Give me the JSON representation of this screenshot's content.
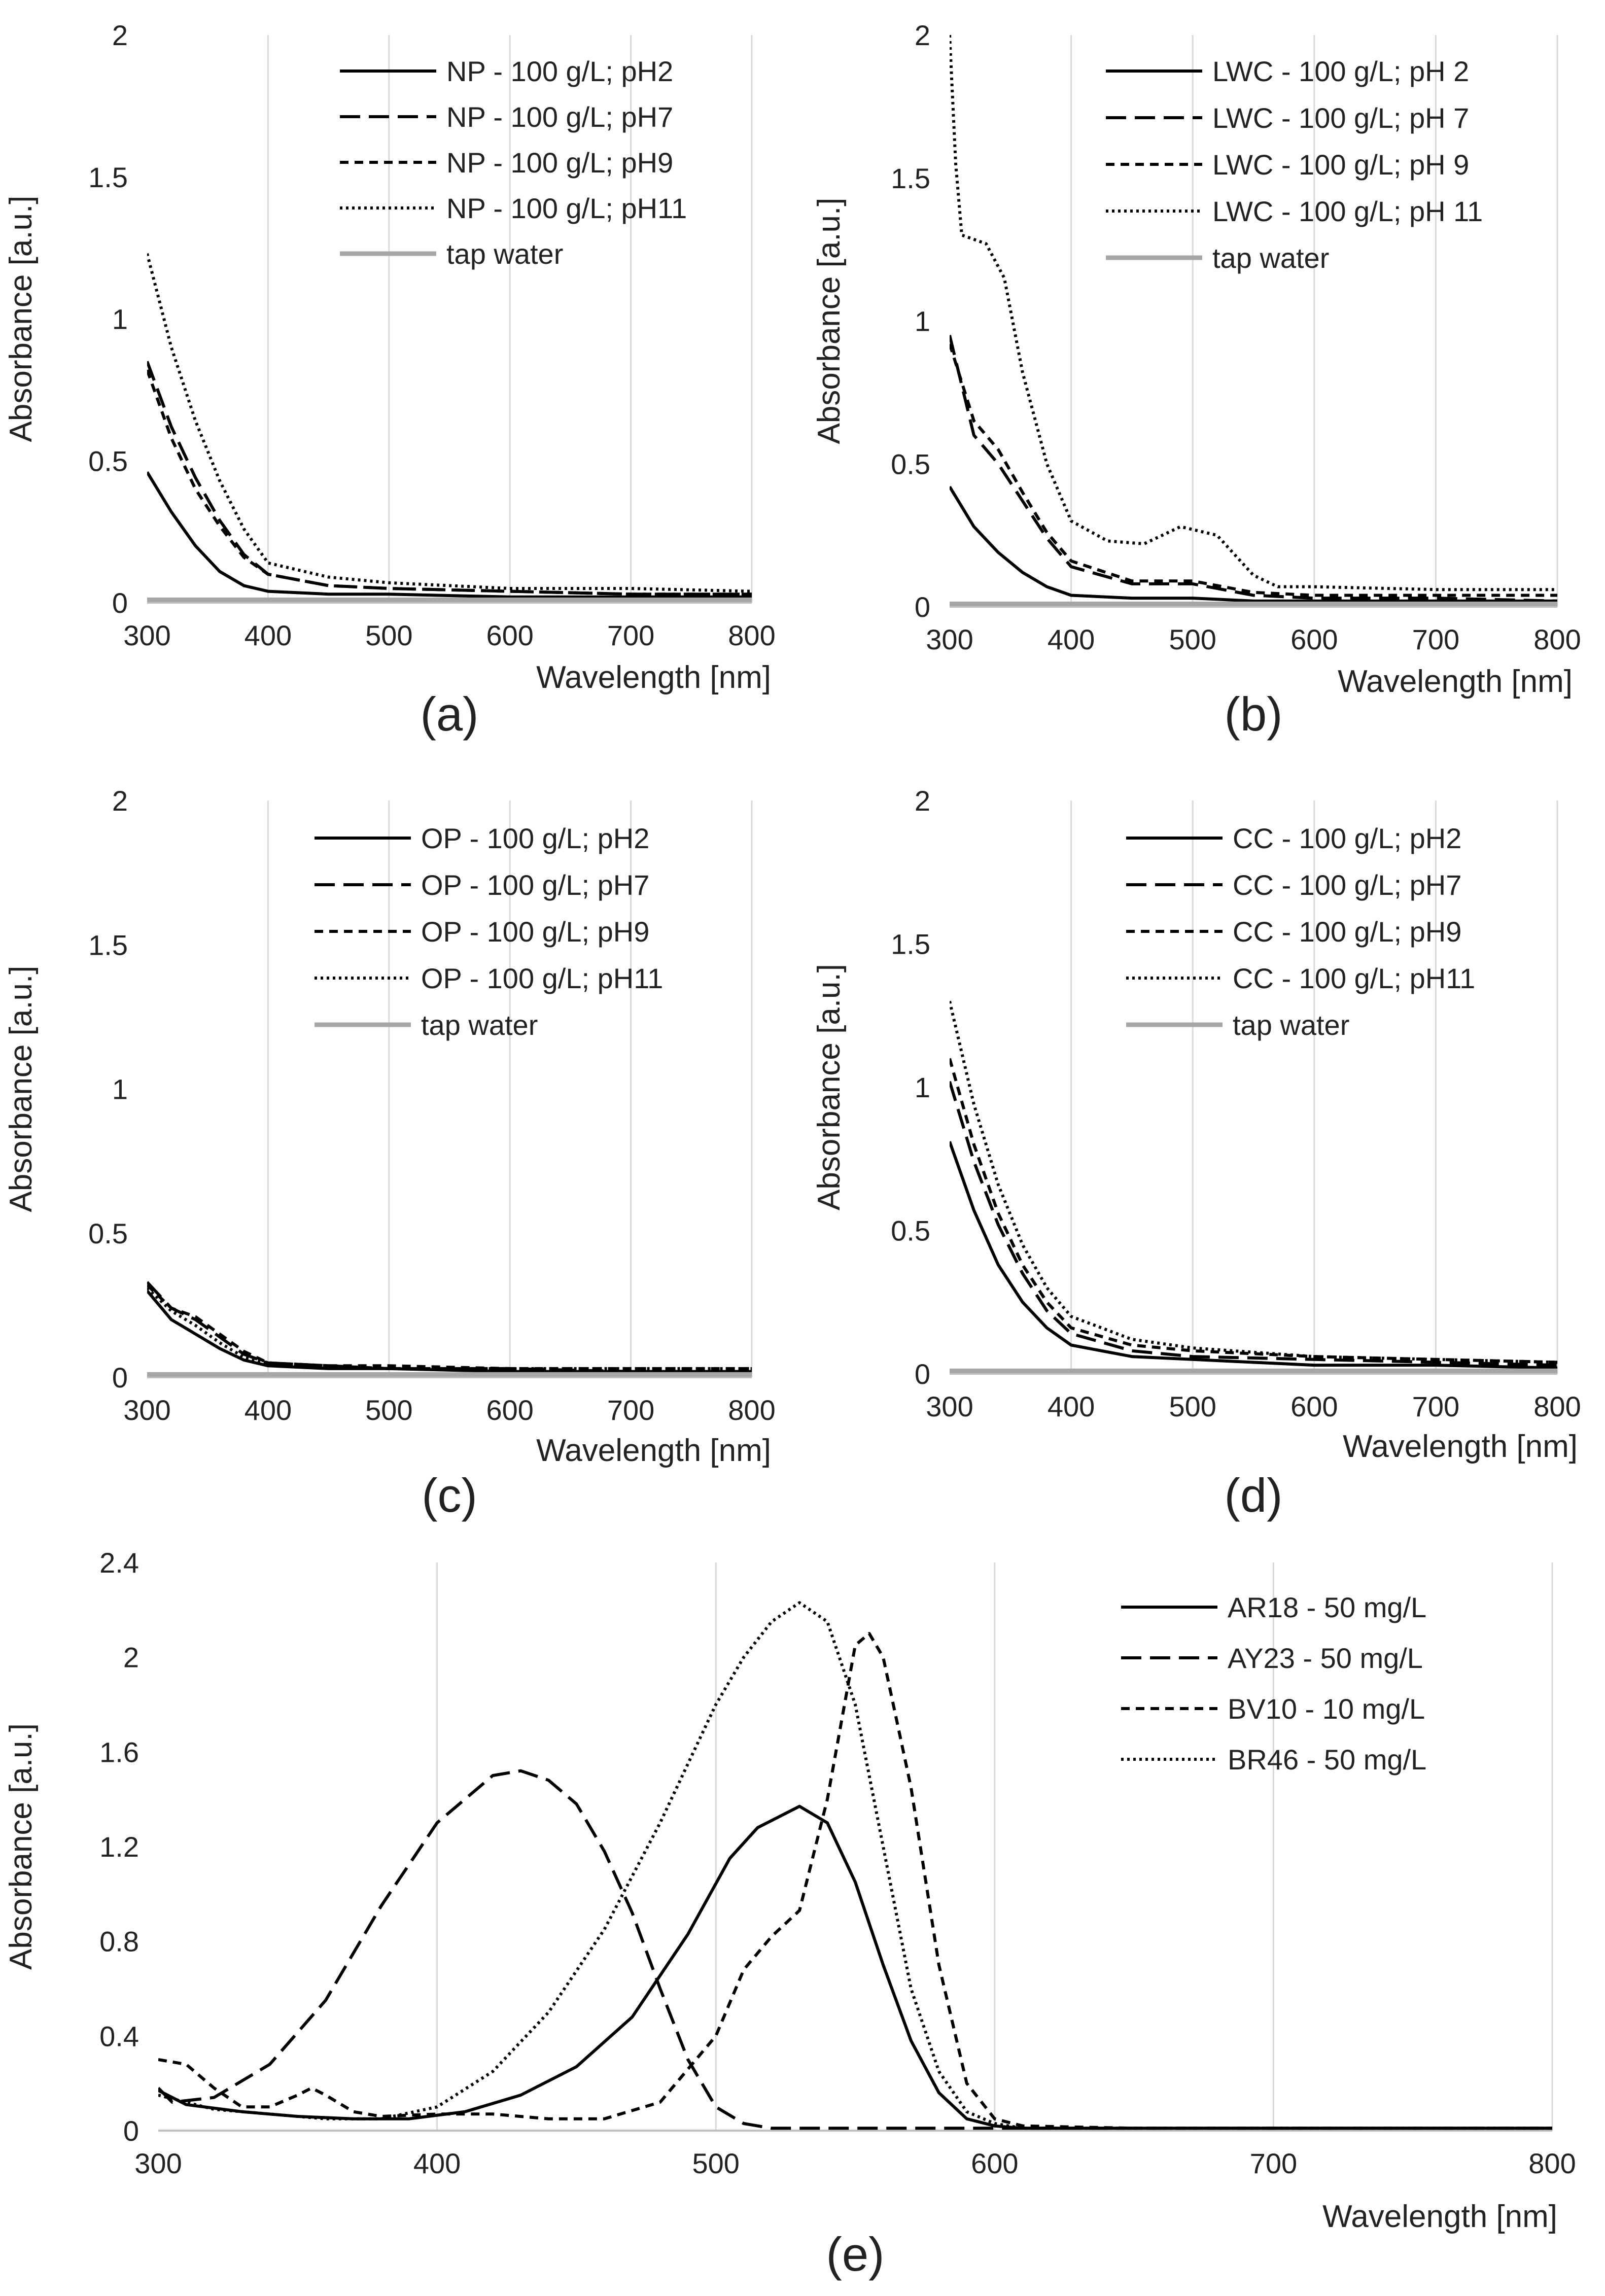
{
  "colors": {
    "line": "#000000",
    "tap_water": "#a6a6a6",
    "grid": "#d9d9d9",
    "axis": "#bfbfbf",
    "text": "#222222"
  },
  "chart_data": [
    {
      "id": "a",
      "type": "line",
      "panel_label": "(a)",
      "xlabel": "Wavelength [nm]",
      "ylabel": "Absorbance [a.u.]",
      "xlim": [
        300,
        800
      ],
      "ylim": [
        0,
        2
      ],
      "xticks": [
        300,
        400,
        500,
        600,
        700,
        800
      ],
      "yticks": [
        0,
        0.5,
        1,
        1.5,
        2
      ],
      "ytick_labels": [
        "0",
        "0.5",
        "1",
        "1.5",
        "2"
      ],
      "legend_position": "top-right",
      "grid": true,
      "series": [
        {
          "name": "NP - 100 g/L; pH2",
          "style": "solid",
          "x": [
            300,
            320,
            340,
            360,
            380,
            400,
            450,
            500,
            600,
            700,
            800
          ],
          "y": [
            0.46,
            0.32,
            0.2,
            0.11,
            0.06,
            0.04,
            0.03,
            0.03,
            0.02,
            0.02,
            0.02
          ]
        },
        {
          "name": "NP - 100 g/L; pH7",
          "style": "dash",
          "x": [
            300,
            320,
            340,
            360,
            380,
            400,
            450,
            500,
            600,
            700,
            800
          ],
          "y": [
            0.85,
            0.62,
            0.44,
            0.29,
            0.17,
            0.1,
            0.06,
            0.05,
            0.04,
            0.03,
            0.03
          ]
        },
        {
          "name": "NP - 100 g/L; pH9",
          "style": "shortdash",
          "x": [
            300,
            320,
            340,
            360,
            380,
            400,
            450,
            500,
            600,
            700,
            800
          ],
          "y": [
            0.82,
            0.58,
            0.4,
            0.27,
            0.16,
            0.1,
            0.06,
            0.05,
            0.04,
            0.03,
            0.03
          ]
        },
        {
          "name": "NP - 100 g/L; pH11",
          "style": "dot",
          "x": [
            300,
            320,
            340,
            360,
            380,
            400,
            450,
            500,
            600,
            700,
            800
          ],
          "y": [
            1.23,
            0.9,
            0.64,
            0.43,
            0.26,
            0.14,
            0.09,
            0.07,
            0.05,
            0.05,
            0.04
          ]
        },
        {
          "name": "tap water",
          "style": "gray",
          "x": [
            300,
            800
          ],
          "y": [
            0.01,
            0.01
          ]
        }
      ]
    },
    {
      "id": "b",
      "type": "line",
      "panel_label": "(b)",
      "xlabel": "Wavelength [nm]",
      "ylabel": "Absorbance [a.u.]",
      "xlim": [
        300,
        800
      ],
      "ylim": [
        0,
        2
      ],
      "xticks": [
        300,
        400,
        500,
        600,
        700,
        800
      ],
      "yticks": [
        0,
        0.5,
        1,
        1.5,
        2
      ],
      "ytick_labels": [
        "0",
        "0.5",
        "1",
        "1.5",
        "2"
      ],
      "legend_position": "top-right",
      "grid": true,
      "series": [
        {
          "name": "LWC - 100 g/L; pH 2",
          "style": "solid",
          "x": [
            300,
            320,
            340,
            360,
            380,
            400,
            450,
            500,
            550,
            600,
            700,
            800
          ],
          "y": [
            0.42,
            0.28,
            0.19,
            0.12,
            0.07,
            0.04,
            0.03,
            0.03,
            0.02,
            0.02,
            0.02,
            0.02
          ]
        },
        {
          "name": "LWC - 100 g/L; pH 7",
          "style": "dash",
          "x": [
            300,
            320,
            340,
            360,
            380,
            400,
            450,
            500,
            550,
            600,
            700,
            800
          ],
          "y": [
            0.95,
            0.6,
            0.5,
            0.37,
            0.24,
            0.14,
            0.08,
            0.08,
            0.04,
            0.03,
            0.03,
            0.02
          ]
        },
        {
          "name": "LWC - 100 g/L; pH 9",
          "style": "shortdash",
          "x": [
            300,
            320,
            340,
            360,
            380,
            400,
            450,
            500,
            550,
            600,
            700,
            800
          ],
          "y": [
            0.92,
            0.65,
            0.55,
            0.4,
            0.26,
            0.16,
            0.09,
            0.09,
            0.05,
            0.04,
            0.04,
            0.04
          ]
        },
        {
          "name": "LWC - 100 g/L; pH 11",
          "style": "dot",
          "x": [
            300,
            305,
            310,
            330,
            345,
            360,
            380,
            400,
            430,
            460,
            490,
            520,
            550,
            570,
            600,
            700,
            800
          ],
          "y": [
            2.0,
            1.55,
            1.3,
            1.27,
            1.15,
            0.82,
            0.5,
            0.3,
            0.23,
            0.22,
            0.28,
            0.25,
            0.11,
            0.07,
            0.07,
            0.06,
            0.06
          ]
        },
        {
          "name": "tap water",
          "style": "gray",
          "x": [
            300,
            800
          ],
          "y": [
            0.01,
            0.01
          ]
        }
      ]
    },
    {
      "id": "c",
      "type": "line",
      "panel_label": "(c)",
      "xlabel": "Wavelength [nm]",
      "ylabel": "Absorbance [a.u.]",
      "xlim": [
        300,
        800
      ],
      "ylim": [
        0,
        2
      ],
      "xticks": [
        300,
        400,
        500,
        600,
        700,
        800
      ],
      "yticks": [
        0,
        0.5,
        1,
        1.5,
        2
      ],
      "ytick_labels": [
        "0",
        "0.5",
        "1",
        "1.5",
        "2"
      ],
      "legend_position": "top-right",
      "grid": true,
      "series": [
        {
          "name": "OP - 100 g/L; pH2",
          "style": "solid",
          "x": [
            300,
            320,
            340,
            360,
            380,
            400,
            450,
            500,
            600,
            700,
            800
          ],
          "y": [
            0.3,
            0.2,
            0.15,
            0.1,
            0.06,
            0.04,
            0.03,
            0.03,
            0.02,
            0.02,
            0.02
          ]
        },
        {
          "name": "OP - 100 g/L; pH7",
          "style": "dash",
          "x": [
            300,
            320,
            340,
            360,
            380,
            400,
            450,
            500,
            600,
            700,
            800
          ],
          "y": [
            0.33,
            0.24,
            0.2,
            0.14,
            0.08,
            0.05,
            0.04,
            0.03,
            0.03,
            0.02,
            0.02
          ]
        },
        {
          "name": "OP - 100 g/L; pH9",
          "style": "shortdash",
          "x": [
            300,
            320,
            340,
            360,
            380,
            400,
            450,
            500,
            600,
            700,
            800
          ],
          "y": [
            0.32,
            0.24,
            0.21,
            0.15,
            0.09,
            0.05,
            0.04,
            0.04,
            0.03,
            0.03,
            0.03
          ]
        },
        {
          "name": "OP - 100 g/L; pH11",
          "style": "dot",
          "x": [
            300,
            320,
            340,
            360,
            380,
            400,
            450,
            500,
            600,
            700,
            800
          ],
          "y": [
            0.31,
            0.23,
            0.18,
            0.12,
            0.07,
            0.05,
            0.04,
            0.03,
            0.03,
            0.03,
            0.03
          ]
        },
        {
          "name": "tap water",
          "style": "gray",
          "x": [
            300,
            800
          ],
          "y": [
            0.01,
            0.01
          ]
        }
      ]
    },
    {
      "id": "d",
      "type": "line",
      "panel_label": "(d)",
      "xlabel": "Wavelength [nm]",
      "ylabel": "Absorbance [a.u.]",
      "xlim": [
        300,
        800
      ],
      "ylim": [
        0,
        2
      ],
      "xticks": [
        300,
        400,
        500,
        600,
        700,
        800
      ],
      "yticks": [
        0,
        0.5,
        1,
        1.5,
        2
      ],
      "ytick_labels": [
        "0",
        "0.5",
        "1",
        "1.5",
        "2"
      ],
      "legend_position": "top-right",
      "grid": true,
      "series": [
        {
          "name": "CC - 100 g/L; pH2",
          "style": "solid",
          "x": [
            300,
            320,
            340,
            360,
            380,
            400,
            450,
            500,
            600,
            700,
            800
          ],
          "y": [
            0.81,
            0.57,
            0.38,
            0.25,
            0.16,
            0.1,
            0.06,
            0.05,
            0.03,
            0.03,
            0.02
          ]
        },
        {
          "name": "CC - 100 g/L; pH7",
          "style": "dash",
          "x": [
            300,
            320,
            340,
            360,
            380,
            400,
            450,
            500,
            600,
            700,
            800
          ],
          "y": [
            1.02,
            0.74,
            0.52,
            0.35,
            0.22,
            0.14,
            0.08,
            0.06,
            0.05,
            0.04,
            0.03
          ]
        },
        {
          "name": "CC - 100 g/L; pH9",
          "style": "shortdash",
          "x": [
            300,
            320,
            340,
            360,
            380,
            400,
            450,
            500,
            600,
            700,
            800
          ],
          "y": [
            1.1,
            0.8,
            0.56,
            0.38,
            0.25,
            0.16,
            0.1,
            0.08,
            0.06,
            0.05,
            0.04
          ]
        },
        {
          "name": "CC - 100 g/L; pH11",
          "style": "dot",
          "x": [
            300,
            320,
            340,
            360,
            380,
            400,
            450,
            500,
            600,
            700,
            800
          ],
          "y": [
            1.3,
            0.94,
            0.66,
            0.45,
            0.3,
            0.2,
            0.12,
            0.09,
            0.06,
            0.05,
            0.04
          ]
        },
        {
          "name": "tap water",
          "style": "gray",
          "x": [
            300,
            800
          ],
          "y": [
            0.01,
            0.01
          ]
        }
      ]
    },
    {
      "id": "e",
      "type": "line",
      "panel_label": "(e)",
      "xlabel": "Wavelength [nm]",
      "ylabel": "Absorbance [a.u.]",
      "xlim": [
        300,
        800
      ],
      "ylim": [
        0,
        2.4
      ],
      "xticks": [
        300,
        400,
        500,
        600,
        700,
        800
      ],
      "yticks": [
        0,
        0.4,
        0.8,
        1.2,
        1.6,
        2,
        2.4
      ],
      "ytick_labels": [
        "0",
        "0.4",
        "0.8",
        "1.2",
        "1.6",
        "2",
        "2.4"
      ],
      "legend_position": "top-right",
      "grid": true,
      "series": [
        {
          "name": "AR18 - 50 mg/L",
          "style": "solid",
          "x": [
            300,
            310,
            330,
            350,
            370,
            390,
            410,
            430,
            450,
            470,
            490,
            505,
            515,
            530,
            540,
            550,
            560,
            570,
            580,
            590,
            600,
            610,
            650,
            700,
            800
          ],
          "y": [
            0.17,
            0.11,
            0.08,
            0.06,
            0.05,
            0.05,
            0.08,
            0.15,
            0.27,
            0.48,
            0.83,
            1.15,
            1.28,
            1.37,
            1.3,
            1.05,
            0.7,
            0.38,
            0.16,
            0.05,
            0.02,
            0.01,
            0.01,
            0.01,
            0.01
          ]
        },
        {
          "name": "AY23 - 50 mg/L",
          "style": "dash",
          "x": [
            300,
            305,
            320,
            340,
            360,
            380,
            400,
            420,
            430,
            440,
            450,
            460,
            470,
            480,
            490,
            500,
            510,
            520,
            540,
            600,
            800
          ],
          "y": [
            0.18,
            0.12,
            0.14,
            0.28,
            0.55,
            0.95,
            1.3,
            1.5,
            1.52,
            1.48,
            1.38,
            1.18,
            0.92,
            0.6,
            0.3,
            0.1,
            0.03,
            0.01,
            0.01,
            0.01,
            0.01
          ]
        },
        {
          "name": "BV10 - 10 mg/L",
          "style": "shortdash",
          "x": [
            300,
            310,
            320,
            330,
            340,
            350,
            355,
            360,
            370,
            380,
            400,
            420,
            440,
            460,
            480,
            500,
            510,
            520,
            530,
            540,
            550,
            555,
            560,
            570,
            580,
            590,
            600,
            610,
            650,
            800
          ],
          "y": [
            0.3,
            0.28,
            0.18,
            0.1,
            0.1,
            0.15,
            0.18,
            0.15,
            0.08,
            0.06,
            0.07,
            0.07,
            0.05,
            0.05,
            0.12,
            0.4,
            0.68,
            0.82,
            0.93,
            1.4,
            2.05,
            2.1,
            2.0,
            1.45,
            0.7,
            0.2,
            0.05,
            0.02,
            0.01,
            0.01
          ]
        },
        {
          "name": "BR46 - 50 mg/L",
          "style": "dot",
          "x": [
            300,
            320,
            340,
            360,
            380,
            400,
            420,
            440,
            460,
            480,
            500,
            510,
            520,
            530,
            540,
            550,
            560,
            570,
            580,
            590,
            600,
            610,
            650,
            800
          ],
          "y": [
            0.15,
            0.09,
            0.07,
            0.05,
            0.05,
            0.1,
            0.25,
            0.5,
            0.85,
            1.3,
            1.8,
            2.0,
            2.15,
            2.23,
            2.15,
            1.8,
            1.2,
            0.6,
            0.25,
            0.08,
            0.03,
            0.01,
            0.01,
            0.01
          ]
        }
      ]
    }
  ]
}
